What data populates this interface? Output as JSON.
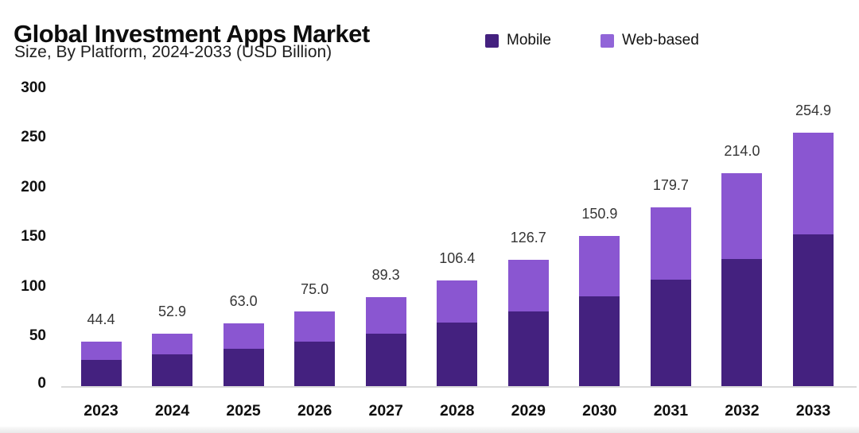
{
  "header": {
    "title": "Global Investment Apps Market",
    "subtitle": "Size, By Platform, 2024-2033 (USD Billion)"
  },
  "legend": {
    "items": [
      {
        "label": "Mobile",
        "color": "#44217f"
      },
      {
        "label": "Web-based",
        "color": "#9165d8"
      }
    ]
  },
  "colors": {
    "mobile": "#44217f",
    "web_based": "#8a56d1",
    "axis_line": "#dadada",
    "text_dark": "#0d0d0d",
    "value_label": "#353535",
    "background": "#ffffff"
  },
  "chart_data": {
    "type": "bar",
    "stacked": true,
    "title": "Global Investment Apps Market",
    "subtitle": "Size, By Platform, 2024-2033 (USD Billion)",
    "xlabel": "",
    "ylabel": "USD Billion",
    "ylim": [
      0,
      300
    ],
    "yticks": [
      0,
      50,
      100,
      150,
      200,
      250,
      300
    ],
    "grid": false,
    "legend_position": "top",
    "categories": [
      "2023",
      "2024",
      "2025",
      "2026",
      "2027",
      "2028",
      "2029",
      "2030",
      "2031",
      "2032",
      "2033"
    ],
    "totals": [
      44.4,
      52.9,
      63.0,
      75.0,
      89.3,
      106.4,
      126.7,
      150.9,
      179.7,
      214.0,
      254.9
    ],
    "total_labels": [
      "44.4",
      "52.9",
      "63.0",
      "75.0",
      "89.3",
      "106.4",
      "126.7",
      "150.9",
      "179.7",
      "214.0",
      "254.9"
    ],
    "series": [
      {
        "name": "Mobile",
        "color": "#44217f",
        "values_estimated_from_pixels": true,
        "values": [
          26.4,
          32.0,
          37.6,
          45.0,
          52.9,
          63.7,
          75.4,
          90.1,
          107.4,
          127.7,
          152.9
        ]
      },
      {
        "name": "Web-based",
        "color": "#8a56d1",
        "values_estimated_from_pixels": true,
        "values": [
          18.0,
          20.9,
          25.4,
          30.0,
          36.4,
          42.7,
          51.3,
          60.8,
          72.3,
          86.3,
          102.0
        ]
      }
    ]
  }
}
